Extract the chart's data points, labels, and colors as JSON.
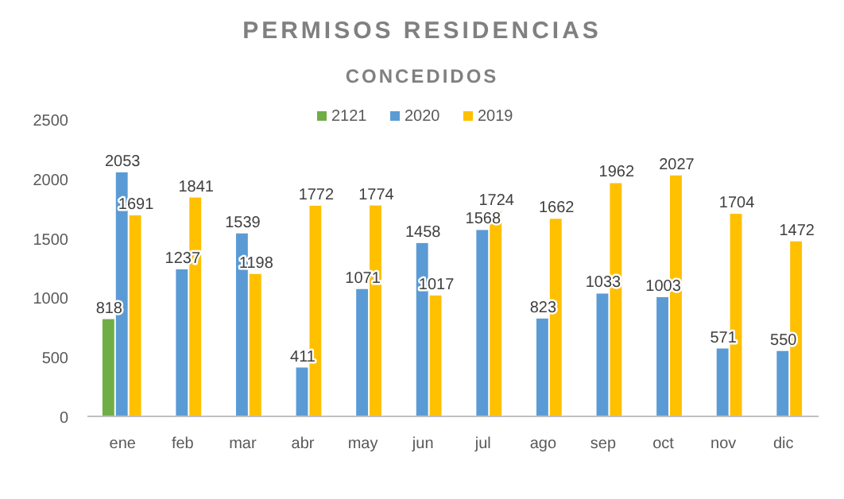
{
  "chart_data": {
    "type": "bar",
    "title": "PERMISOS RESIDENCIAS",
    "subtitle": "CONCEDIDOS",
    "categories": [
      "ene",
      "feb",
      "mar",
      "abr",
      "may",
      "jun",
      "jul",
      "ago",
      "sep",
      "oct",
      "nov",
      "dic"
    ],
    "series": [
      {
        "name": "2121",
        "color": "#70ad47",
        "values": [
          818,
          null,
          null,
          null,
          null,
          null,
          null,
          null,
          null,
          null,
          null,
          null
        ]
      },
      {
        "name": "2020",
        "color": "#5b9bd5",
        "values": [
          2053,
          1237,
          1539,
          411,
          1071,
          1458,
          1568,
          823,
          1033,
          1003,
          571,
          550
        ]
      },
      {
        "name": "2019",
        "color": "#ffc000",
        "values": [
          1691,
          1841,
          1198,
          1772,
          1774,
          1017,
          1724,
          1662,
          1962,
          2027,
          1704,
          1472
        ]
      }
    ],
    "ylim": [
      0,
      2500
    ],
    "yticks": [
      0,
      500,
      1000,
      1500,
      2000,
      2500
    ],
    "grid": false,
    "legend": "top",
    "data_labels": true
  }
}
